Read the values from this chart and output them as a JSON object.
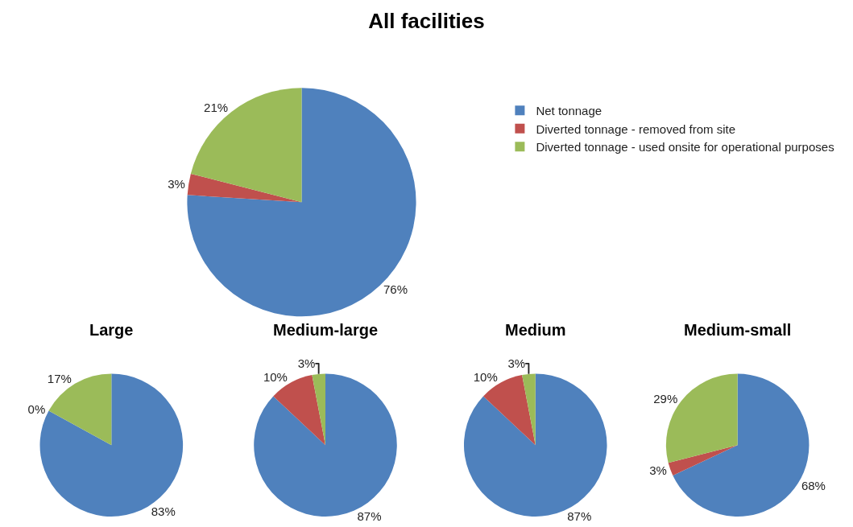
{
  "chart_data": [
    {
      "type": "pie",
      "title": "All facilities",
      "categories": [
        "Net tonnage",
        "Diverted tonnage - removed from site",
        "Diverted tonnage - used onsite for operational purposes"
      ],
      "values": [
        76,
        3,
        21
      ],
      "value_labels": [
        "76%",
        "3%",
        "21%"
      ],
      "colors": [
        "#4f81bd",
        "#c0504d",
        "#9bbb59"
      ],
      "legend": "right"
    },
    {
      "type": "pie",
      "title": "Large",
      "categories": [
        null,
        null,
        null
      ],
      "values": [
        83,
        0,
        17
      ],
      "value_labels": [
        "83%",
        "0%",
        "17%"
      ],
      "colors": [
        "#4f81bd",
        "#c0504d",
        "#9bbb59"
      ]
    },
    {
      "type": "pie",
      "title": "Medium-large",
      "categories": [
        null,
        null,
        null
      ],
      "values": [
        87,
        10,
        3
      ],
      "value_labels": [
        "87%",
        "10%",
        "3%"
      ],
      "colors": [
        "#4f81bd",
        "#c0504d",
        "#9bbb59"
      ]
    },
    {
      "type": "pie",
      "title": "Medium",
      "categories": [
        null,
        null,
        null
      ],
      "values": [
        87,
        10,
        3
      ],
      "value_labels": [
        "87%",
        "10%",
        "3%"
      ],
      "colors": [
        "#4f81bd",
        "#c0504d",
        "#9bbb59"
      ]
    },
    {
      "type": "pie",
      "title": "Medium-small",
      "categories": [
        null,
        null,
        null
      ],
      "values": [
        68,
        3,
        29
      ],
      "value_labels": [
        "68%",
        "3%",
        "29%"
      ],
      "colors": [
        "#4f81bd",
        "#c0504d",
        "#9bbb59"
      ]
    }
  ]
}
